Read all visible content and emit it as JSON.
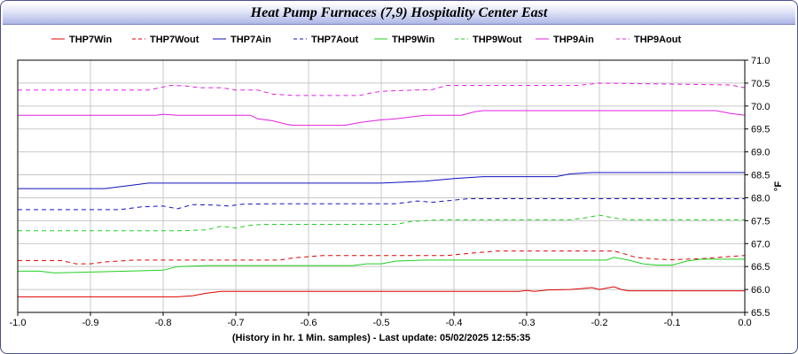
{
  "chart_data": {
    "type": "line",
    "title": "Heat Pump Furnaces (7,9) Hospitality Center East",
    "xlabel": "(History in hr. 1 Min. samples) - Last update: 05/02/2025 12:55:35",
    "ylabel": "°F",
    "xlim": [
      -1.0,
      0.0
    ],
    "ylim": [
      65.5,
      71.0
    ],
    "xticks": [
      "-1.0",
      "-0.9",
      "-0.8",
      "-0.7",
      "-0.6",
      "-0.5",
      "-0.4",
      "-0.3",
      "-0.2",
      "-0.1",
      "0.0"
    ],
    "yticks": [
      "65.5",
      "66.0",
      "66.5",
      "67.0",
      "67.5",
      "68.0",
      "68.5",
      "69.0",
      "69.5",
      "70.0",
      "70.5",
      "71.0"
    ],
    "grid": true,
    "legend_position": "top",
    "series": [
      {
        "name": "THP7Win",
        "color": "#e00000",
        "dash": false,
        "points": [
          [
            -1.0,
            65.84
          ],
          [
            -0.78,
            65.84
          ],
          [
            -0.76,
            65.86
          ],
          [
            -0.74,
            65.92
          ],
          [
            -0.72,
            65.96
          ],
          [
            -0.31,
            65.96
          ],
          [
            -0.3,
            65.98
          ],
          [
            -0.29,
            65.96
          ],
          [
            -0.27,
            65.99
          ],
          [
            -0.24,
            66.0
          ],
          [
            -0.21,
            66.04
          ],
          [
            -0.2,
            66.0
          ],
          [
            -0.18,
            66.06
          ],
          [
            -0.17,
            66.0
          ],
          [
            -0.16,
            65.97
          ],
          [
            0.0,
            65.97
          ]
        ]
      },
      {
        "name": "THP7Wout",
        "color": "#e00000",
        "dash": true,
        "points": [
          [
            -1.0,
            66.63
          ],
          [
            -0.94,
            66.63
          ],
          [
            -0.92,
            66.56
          ],
          [
            -0.9,
            66.56
          ],
          [
            -0.88,
            66.6
          ],
          [
            -0.84,
            66.64
          ],
          [
            -0.64,
            66.64
          ],
          [
            -0.62,
            66.69
          ],
          [
            -0.58,
            66.74
          ],
          [
            -0.41,
            66.74
          ],
          [
            -0.39,
            66.77
          ],
          [
            -0.37,
            66.8
          ],
          [
            -0.34,
            66.84
          ],
          [
            -0.18,
            66.84
          ],
          [
            -0.16,
            66.75
          ],
          [
            -0.15,
            66.7
          ],
          [
            -0.12,
            66.66
          ],
          [
            -0.1,
            66.65
          ],
          [
            -0.06,
            66.67
          ],
          [
            -0.02,
            66.72
          ],
          [
            0.0,
            66.74
          ]
        ]
      },
      {
        "name": "THP7Ain",
        "color": "#1010c0",
        "dash": false,
        "points": [
          [
            -1.0,
            68.2
          ],
          [
            -0.88,
            68.2
          ],
          [
            -0.85,
            68.26
          ],
          [
            -0.82,
            68.32
          ],
          [
            -0.5,
            68.32
          ],
          [
            -0.44,
            68.36
          ],
          [
            -0.4,
            68.42
          ],
          [
            -0.36,
            68.46
          ],
          [
            -0.26,
            68.46
          ],
          [
            -0.24,
            68.52
          ],
          [
            -0.21,
            68.55
          ],
          [
            0.0,
            68.55
          ]
        ]
      },
      {
        "name": "THP7Aout",
        "color": "#1010c0",
        "dash": true,
        "points": [
          [
            -1.0,
            67.74
          ],
          [
            -0.86,
            67.74
          ],
          [
            -0.83,
            67.8
          ],
          [
            -0.8,
            67.82
          ],
          [
            -0.78,
            67.76
          ],
          [
            -0.76,
            67.85
          ],
          [
            -0.73,
            67.84
          ],
          [
            -0.71,
            67.82
          ],
          [
            -0.69,
            67.86
          ],
          [
            -0.64,
            67.87
          ],
          [
            -0.48,
            67.87
          ],
          [
            -0.45,
            67.93
          ],
          [
            -0.43,
            67.9
          ],
          [
            -0.38,
            67.98
          ],
          [
            0.0,
            67.98
          ]
        ]
      },
      {
        "name": "THP9Win",
        "color": "#20d020",
        "dash": false,
        "points": [
          [
            -1.0,
            66.4
          ],
          [
            -0.97,
            66.4
          ],
          [
            -0.95,
            66.36
          ],
          [
            -0.9,
            66.38
          ],
          [
            -0.85,
            66.4
          ],
          [
            -0.8,
            66.42
          ],
          [
            -0.78,
            66.5
          ],
          [
            -0.74,
            66.52
          ],
          [
            -0.54,
            66.52
          ],
          [
            -0.52,
            66.56
          ],
          [
            -0.5,
            66.56
          ],
          [
            -0.48,
            66.62
          ],
          [
            -0.44,
            66.64
          ],
          [
            -0.19,
            66.64
          ],
          [
            -0.18,
            66.7
          ],
          [
            -0.16,
            66.64
          ],
          [
            -0.14,
            66.56
          ],
          [
            -0.12,
            66.53
          ],
          [
            -0.1,
            66.53
          ],
          [
            -0.08,
            66.62
          ],
          [
            -0.06,
            66.66
          ],
          [
            0.0,
            66.66
          ]
        ]
      },
      {
        "name": "THP9Wout",
        "color": "#20d020",
        "dash": true,
        "points": [
          [
            -1.0,
            67.28
          ],
          [
            -0.78,
            67.28
          ],
          [
            -0.74,
            67.3
          ],
          [
            -0.72,
            67.38
          ],
          [
            -0.7,
            67.34
          ],
          [
            -0.68,
            67.4
          ],
          [
            -0.66,
            67.42
          ],
          [
            -0.48,
            67.42
          ],
          [
            -0.46,
            67.48
          ],
          [
            -0.42,
            67.52
          ],
          [
            -0.24,
            67.52
          ],
          [
            -0.22,
            67.56
          ],
          [
            -0.2,
            67.62
          ],
          [
            -0.18,
            67.56
          ],
          [
            -0.16,
            67.52
          ],
          [
            0.0,
            67.52
          ]
        ]
      },
      {
        "name": "THP9Ain",
        "color": "#e020e0",
        "dash": false,
        "points": [
          [
            -1.0,
            69.8
          ],
          [
            -0.81,
            69.8
          ],
          [
            -0.8,
            69.82
          ],
          [
            -0.78,
            69.8
          ],
          [
            -0.68,
            69.8
          ],
          [
            -0.67,
            69.72
          ],
          [
            -0.65,
            69.68
          ],
          [
            -0.63,
            69.6
          ],
          [
            -0.62,
            69.58
          ],
          [
            -0.55,
            69.58
          ],
          [
            -0.53,
            69.64
          ],
          [
            -0.51,
            69.68
          ],
          [
            -0.5,
            69.7
          ],
          [
            -0.48,
            69.72
          ],
          [
            -0.46,
            69.76
          ],
          [
            -0.44,
            69.8
          ],
          [
            -0.39,
            69.8
          ],
          [
            -0.37,
            69.88
          ],
          [
            -0.36,
            69.9
          ],
          [
            -0.04,
            69.9
          ],
          [
            -0.02,
            69.84
          ],
          [
            0.0,
            69.8
          ]
        ]
      },
      {
        "name": "THP9Aout",
        "color": "#e020e0",
        "dash": true,
        "points": [
          [
            -1.0,
            70.35
          ],
          [
            -0.82,
            70.35
          ],
          [
            -0.81,
            70.38
          ],
          [
            -0.79,
            70.45
          ],
          [
            -0.77,
            70.44
          ],
          [
            -0.75,
            70.4
          ],
          [
            -0.72,
            70.4
          ],
          [
            -0.7,
            70.35
          ],
          [
            -0.67,
            70.35
          ],
          [
            -0.65,
            70.26
          ],
          [
            -0.62,
            70.23
          ],
          [
            -0.53,
            70.23
          ],
          [
            -0.51,
            70.3
          ],
          [
            -0.49,
            70.33
          ],
          [
            -0.43,
            70.36
          ],
          [
            -0.41,
            70.45
          ],
          [
            -0.23,
            70.45
          ],
          [
            -0.21,
            70.48
          ],
          [
            -0.2,
            70.5
          ],
          [
            -0.02,
            70.46
          ],
          [
            0.0,
            70.4
          ]
        ]
      }
    ]
  }
}
